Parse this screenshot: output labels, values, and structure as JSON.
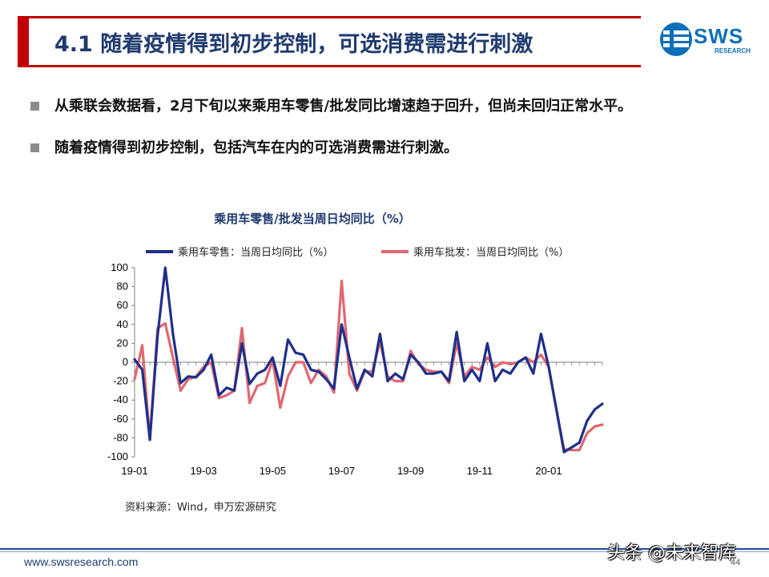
{
  "slide": {
    "title": "4.1 随着疫情得到初步控制，可选消费需进行刺激",
    "logo": {
      "text": "SWS",
      "sub": "RESEARCH"
    },
    "bullets": [
      "从乘联会数据看，2月下旬以来乘用车零售/批发同比增速趋于回升，但尚未回归正常水平。",
      "随着疫情得到初步控制，包括汽车在内的可选消费需进行刺激。"
    ],
    "source": "资料来源：Wind，申万宏源研究",
    "footer_url": "www.swsresearch.com",
    "page_number": "44",
    "watermark": "头条 @未来智库"
  },
  "colors": {
    "title_bar": "#c00000",
    "title_text": "#1f3a6e",
    "retail": "#1f2f8a",
    "wholesale": "#e06870",
    "logo": "#0d6fb8"
  },
  "chart_data": {
    "type": "line",
    "title": "乘用车零售/批发当周日均同比（%）",
    "ylim": [
      -100,
      100
    ],
    "yticks": [
      -100,
      -80,
      -60,
      -40,
      -20,
      0,
      20,
      40,
      60,
      80,
      100
    ],
    "x_tick_labels": [
      {
        "label": "19-01",
        "index": 0
      },
      {
        "label": "19-03",
        "index": 9
      },
      {
        "label": "19-05",
        "index": 18
      },
      {
        "label": "19-07",
        "index": 27
      },
      {
        "label": "19-09",
        "index": 36
      },
      {
        "label": "19-11",
        "index": 45
      },
      {
        "label": "20-01",
        "index": 54
      }
    ],
    "legend_position": "top",
    "series": [
      {
        "name": "乘用车零售：当周日均同比（%）",
        "color": "#1f2f8a",
        "values": [
          3,
          -8,
          -82,
          28,
          100,
          30,
          -22,
          -15,
          -16,
          -8,
          8,
          -35,
          -27,
          -30,
          20,
          -23,
          -12,
          -8,
          5,
          -25,
          24,
          10,
          8,
          -8,
          -10,
          -18,
          -28,
          40,
          5,
          -28,
          -8,
          -15,
          30,
          -20,
          -12,
          -18,
          8,
          0,
          -12,
          -12,
          -10,
          -20,
          32,
          -20,
          -8,
          -20,
          20,
          -20,
          -8,
          -12,
          0,
          5,
          -12,
          30,
          -5,
          -50,
          -95,
          -90,
          -85,
          -62,
          -50,
          -44
        ]
      },
      {
        "name": "乘用车批发：当周日均同比（%）",
        "color": "#e06870",
        "values": [
          -18,
          18,
          -82,
          36,
          41,
          5,
          -30,
          -18,
          -15,
          -5,
          0,
          -38,
          -35,
          -30,
          36,
          -43,
          -25,
          -22,
          2,
          -48,
          -15,
          0,
          0,
          -22,
          -8,
          -15,
          -32,
          86,
          -12,
          -30,
          -10,
          -10,
          22,
          -15,
          -20,
          -20,
          12,
          -2,
          -8,
          -10,
          -10,
          -22,
          20,
          -15,
          -5,
          -8,
          5,
          -5,
          0,
          -2,
          0,
          5,
          0,
          8,
          -5,
          -50,
          -92,
          -93,
          -93,
          -75,
          -68,
          -66
        ]
      }
    ]
  }
}
